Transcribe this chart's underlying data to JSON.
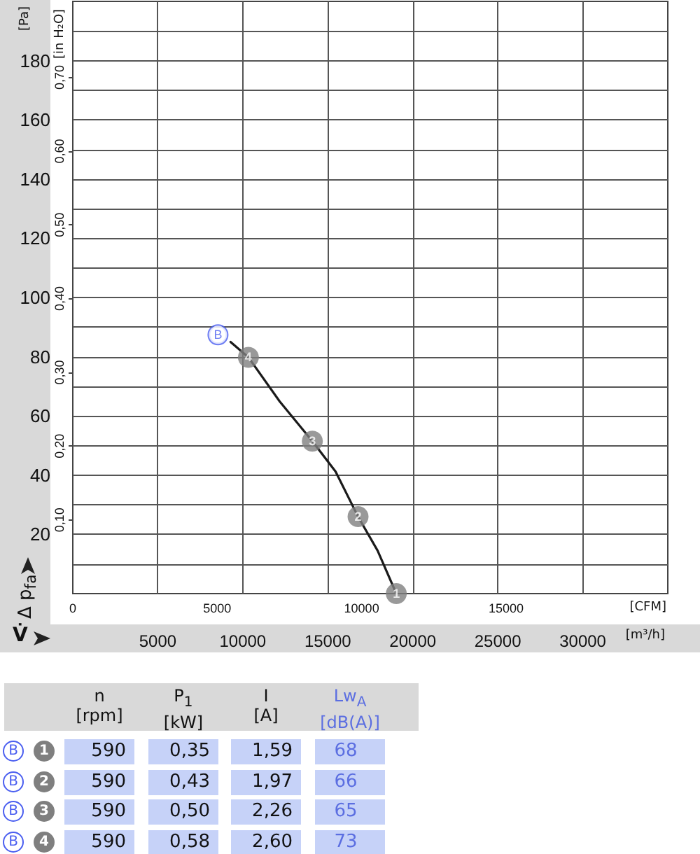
{
  "chart_data": [
    {
      "type": "line",
      "ylabel": "Δ p$_{fa}$",
      "y2label": "[in H₂O]",
      "xlabel": "V̇",
      "x2label": "[CFM]",
      "annotations": [
        "[Pa]",
        "[m³/h]",
        {
          "text": "B",
          "x": 8540,
          "y": 87.4
        },
        {
          "text": "1",
          "x": 19030,
          "y": 0
        },
        {
          "text": "2",
          "x": 16780,
          "y": 26
        },
        {
          "text": "3",
          "x": 14090,
          "y": 51.5
        },
        {
          "text": "4",
          "x": 10330,
          "y": 79.8
        }
      ],
      "series": [
        {
          "type": "line",
          "color": "#1a1a1a",
          "marker": "none",
          "x": [
            9280,
            10330,
            12170,
            14090,
            15460,
            16780,
            17930,
            19030
          ],
          "values": [
            85,
            79.8,
            64.9,
            51.5,
            41.2,
            26,
            14.5,
            0
          ]
        },
        {
          "type": "scatter",
          "color": "#7f7f7f",
          "marker": "circle",
          "x": [
            10330,
            14090,
            16780,
            19030
          ],
          "values": [
            79.8,
            51.5,
            26,
            0
          ]
        }
      ],
      "xlim": [
        0,
        35000
      ],
      "xticks": [
        5000,
        10000,
        15000,
        20000,
        25000,
        30000
      ],
      "x2lim": [
        0,
        20600
      ],
      "x2ticks": [
        0,
        5000,
        10000,
        15000
      ],
      "ylim": [
        0,
        200
      ],
      "yticks": [
        {
          "value": 10,
          "label": null
        },
        20,
        {
          "value": 30,
          "label": null
        },
        40,
        {
          "value": 50,
          "label": null
        },
        60,
        {
          "value": 70,
          "label": null
        },
        80,
        {
          "value": 90,
          "label": null
        },
        100,
        {
          "value": 110,
          "label": null
        },
        120,
        {
          "value": 130,
          "label": null
        },
        140,
        {
          "value": 150,
          "label": null
        },
        160,
        {
          "value": 170,
          "label": null
        },
        180,
        {
          "value": 190,
          "label": null
        }
      ],
      "y2lim": [
        0,
        0.803
      ],
      "y2ticks": [
        {
          "value": 0.1,
          "label": "0,10"
        },
        {
          "value": 0.2,
          "label": "0,20"
        },
        {
          "value": 0.3,
          "label": "0,30"
        },
        {
          "value": 0.4,
          "label": "0,40"
        },
        {
          "value": 0.5,
          "label": "0,50"
        },
        {
          "value": 0.6,
          "label": "0,60"
        },
        {
          "value": 0.7,
          "label": "0,70"
        }
      ],
      "grid": true
    },
    {
      "type": "other",
      "categories": [
        "n [rpm]",
        "P$_{1}$ [kW]",
        "I [A]",
        "Lw$_{A}$ [dB(A)]"
      ],
      "y2_categories": [
        "B",
        "B",
        "B",
        "B"
      ],
      "y_categories": [
        "1",
        "2",
        "3",
        "4"
      ],
      "cell_labels": [
        [
          "590",
          "0,35",
          "1,59",
          "68"
        ],
        [
          "590",
          "0,43",
          "1,97",
          "66"
        ],
        [
          "590",
          "0,50",
          "2,26",
          "65"
        ],
        [
          "590",
          "0,58",
          "2,60",
          "73"
        ]
      ]
    }
  ]
}
